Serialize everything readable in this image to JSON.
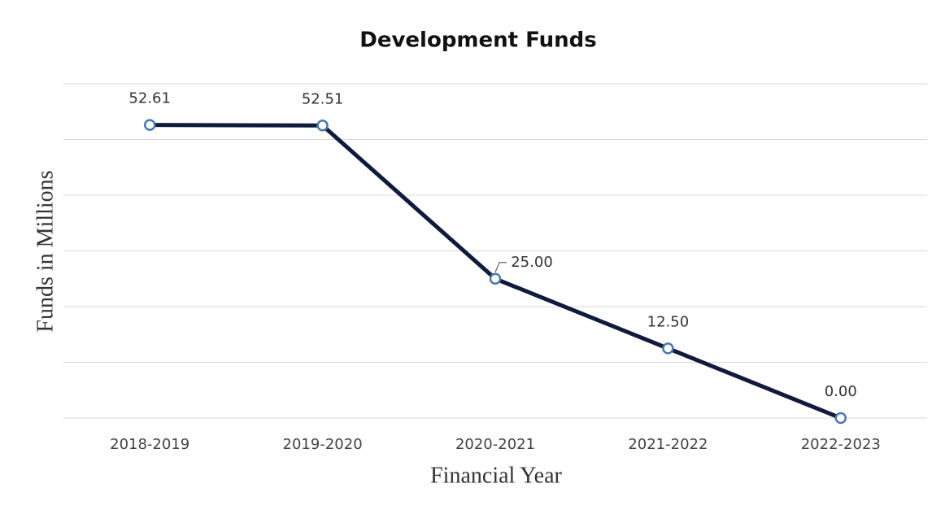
{
  "chart_data": {
    "type": "line",
    "title": "Development Funds",
    "x_label": "Financial Year",
    "y_label": "Funds in Millions",
    "categories": [
      "2018-2019",
      "2019-2020",
      "2020-2021",
      "2021-2022",
      "2022-2023"
    ],
    "series": [
      {
        "name": "Development Funds",
        "color": "#0f1a3c",
        "marker_color": "#4a78b4",
        "values": [
          52.61,
          52.51,
          25,
          12.5,
          0
        ],
        "value_labels": [
          "52.61",
          "52.51",
          "25.00",
          "12.50",
          "0.00"
        ]
      }
    ],
    "ylim": [
      0,
      60
    ],
    "yticks": [
      0,
      10,
      20,
      30,
      40,
      50,
      60
    ],
    "grid": true
  }
}
